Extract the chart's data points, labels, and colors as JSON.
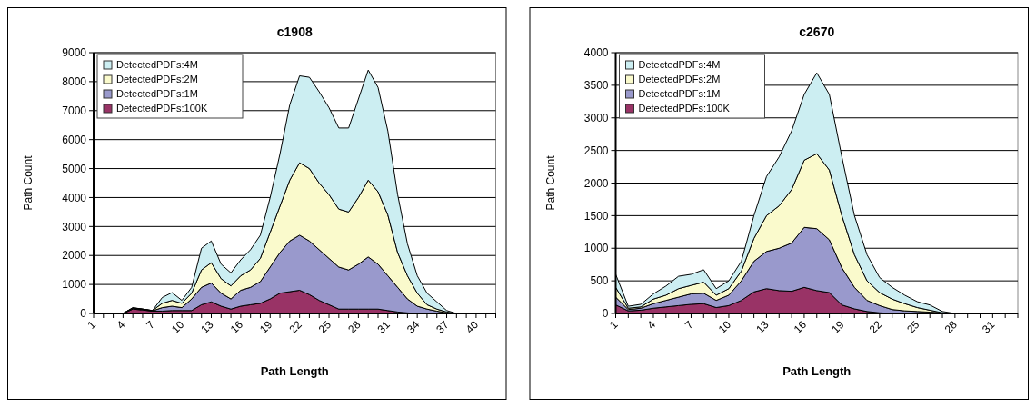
{
  "chart_data": [
    {
      "type": "area",
      "stacked": true,
      "title": "c1908",
      "xlabel": "Path Length",
      "ylabel": "Path Count",
      "categories": [
        "1",
        null,
        null,
        "4",
        null,
        null,
        "7",
        null,
        null,
        "10",
        null,
        null,
        "13",
        null,
        null,
        "16",
        null,
        null,
        "19",
        null,
        null,
        "22",
        null,
        null,
        "25",
        null,
        null,
        "28",
        null,
        null,
        "31",
        null,
        null,
        "34",
        null,
        null,
        "37",
        null,
        null,
        "40",
        null,
        null
      ],
      "ylim": [
        0,
        9000
      ],
      "yticks": [
        0,
        1000,
        2000,
        3000,
        4000,
        5000,
        6000,
        7000,
        8000,
        9000
      ],
      "grid": "y",
      "legend": "top left",
      "series": [
        {
          "name": "DetectedPDFs:100K",
          "color": "#993366",
          "values": [
            0,
            0,
            0,
            0,
            150,
            120,
            80,
            80,
            100,
            100,
            100,
            300,
            400,
            250,
            150,
            250,
            300,
            350,
            500,
            700,
            750,
            800,
            650,
            450,
            300,
            150,
            150,
            150,
            150,
            150,
            100,
            50,
            20,
            0,
            0,
            0,
            0,
            0,
            0,
            0,
            0,
            0
          ]
        },
        {
          "name": "DetectedPDFs:1M",
          "color": "#9999cc",
          "values": [
            0,
            0,
            0,
            0,
            30,
            20,
            10,
            120,
            150,
            100,
            400,
            600,
            650,
            450,
            350,
            550,
            600,
            750,
            1100,
            1400,
            1750,
            1900,
            1850,
            1750,
            1600,
            1450,
            1350,
            1550,
            1800,
            1550,
            1200,
            850,
            480,
            250,
            150,
            80,
            20,
            0,
            0,
            0,
            0,
            0
          ]
        },
        {
          "name": "DetectedPDFs:2M",
          "color": "#fafacc",
          "values": [
            0,
            0,
            0,
            0,
            10,
            10,
            10,
            150,
            200,
            150,
            200,
            600,
            700,
            500,
            450,
            500,
            600,
            800,
            1200,
            1600,
            2100,
            2500,
            2500,
            2300,
            2200,
            2000,
            2000,
            2300,
            2650,
            2500,
            2100,
            1200,
            800,
            450,
            150,
            70,
            30,
            0,
            0,
            0,
            0,
            0
          ]
        },
        {
          "name": "DetectedPDFs:4M",
          "color": "#cceef2",
          "values": [
            0,
            0,
            0,
            0,
            10,
            0,
            0,
            200,
            270,
            100,
            200,
            750,
            750,
            500,
            450,
            550,
            700,
            800,
            1200,
            1800,
            2600,
            3000,
            3150,
            3150,
            3000,
            2800,
            2900,
            3400,
            3800,
            3600,
            2900,
            2000,
            1100,
            600,
            400,
            250,
            50,
            0,
            0,
            0,
            0,
            0
          ]
        }
      ]
    },
    {
      "type": "area",
      "stacked": true,
      "title": "c2670",
      "xlabel": "Path Length",
      "ylabel": "Path Count",
      "categories": [
        "1",
        null,
        null,
        "4",
        null,
        null,
        "7",
        null,
        null,
        "10",
        null,
        null,
        "13",
        null,
        null,
        "16",
        null,
        null,
        "19",
        null,
        null,
        "22",
        null,
        null,
        "25",
        null,
        null,
        "28",
        null,
        null,
        "31",
        null,
        null
      ],
      "ylim": [
        0,
        4000
      ],
      "yticks": [
        0,
        500,
        1000,
        1500,
        2000,
        2500,
        3000,
        3500,
        4000
      ],
      "grid": "y",
      "legend": "top left",
      "series": [
        {
          "name": "DetectedPDFs:100K",
          "color": "#993366",
          "values": [
            130,
            40,
            50,
            80,
            100,
            120,
            140,
            150,
            90,
            120,
            200,
            330,
            380,
            350,
            340,
            400,
            350,
            320,
            130,
            70,
            30,
            10,
            0,
            0,
            0,
            0,
            0,
            0,
            0,
            0,
            0,
            0,
            0
          ]
        },
        {
          "name": "DetectedPDFs:1M",
          "color": "#9999cc",
          "values": [
            120,
            20,
            30,
            70,
            100,
            130,
            160,
            160,
            110,
            160,
            300,
            470,
            570,
            650,
            740,
            920,
            950,
            810,
            570,
            330,
            170,
            110,
            60,
            40,
            30,
            20,
            10,
            0,
            0,
            0,
            0,
            0,
            0
          ]
        },
        {
          "name": "DetectedPDFs:2M",
          "color": "#fafacc",
          "values": [
            150,
            20,
            20,
            70,
            80,
            130,
            130,
            170,
            80,
            100,
            150,
            350,
            550,
            650,
            820,
            1030,
            1150,
            1070,
            800,
            500,
            300,
            200,
            160,
            110,
            60,
            30,
            0,
            0,
            0,
            0,
            0,
            0,
            0
          ]
        },
        {
          "name": "DetectedPDFs:4M",
          "color": "#cceef2",
          "values": [
            200,
            30,
            40,
            80,
            140,
            190,
            170,
            190,
            100,
            120,
            150,
            350,
            600,
            750,
            900,
            1010,
            1240,
            1160,
            900,
            600,
            400,
            230,
            180,
            130,
            90,
            80,
            20,
            0,
            0,
            0,
            0,
            0,
            0
          ]
        }
      ]
    }
  ]
}
